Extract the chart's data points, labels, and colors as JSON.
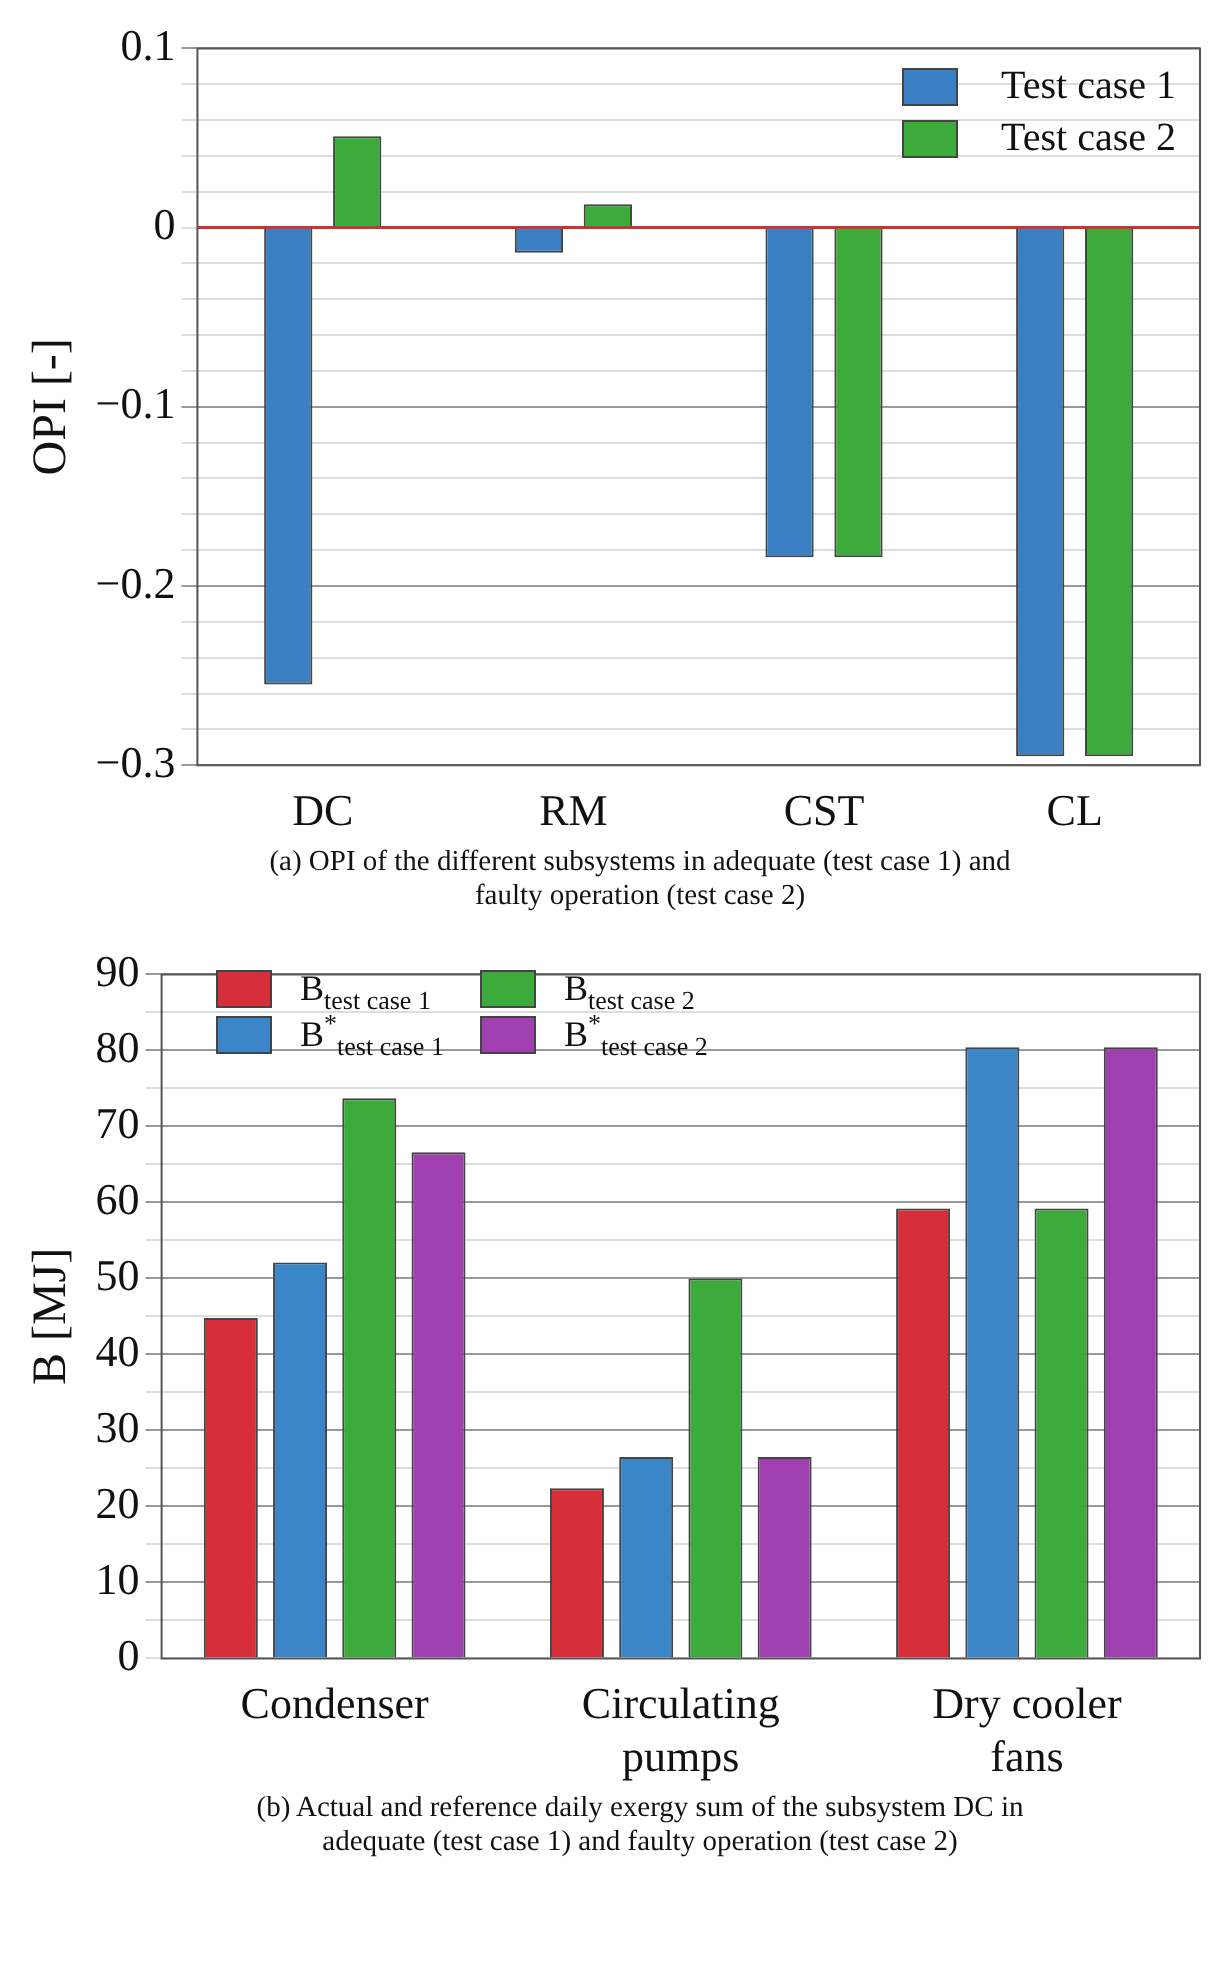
{
  "chart_data": [
    {
      "type": "bar",
      "categories": [
        "DC",
        "RM",
        "CST",
        "CL"
      ],
      "ylabel": "OPI [-]",
      "series": [
        {
          "name": "Test case 1",
          "color": "#3a7fc1",
          "values": [
            -0.255,
            -0.014,
            -0.184,
            -0.295
          ]
        },
        {
          "name": "Test case 2",
          "color": "#3cab3c",
          "values": [
            0.051,
            0.013,
            -0.184,
            -0.295
          ]
        }
      ],
      "ylim": [
        -0.3,
        0.1
      ],
      "yticks": [
        {
          "value": -0.3,
          "label": "−0.3"
        },
        {
          "value": -0.28,
          "label": null
        },
        {
          "value": -0.26,
          "label": null
        },
        {
          "value": -0.24,
          "label": null
        },
        {
          "value": -0.22,
          "label": null
        },
        {
          "value": -0.2,
          "label": "−0.2"
        },
        {
          "value": -0.18,
          "label": null
        },
        {
          "value": -0.16,
          "label": null
        },
        {
          "value": -0.14,
          "label": null
        },
        {
          "value": -0.12,
          "label": null
        },
        {
          "value": -0.1,
          "label": "−0.1"
        },
        {
          "value": -0.08,
          "label": null
        },
        {
          "value": -0.06,
          "label": null
        },
        {
          "value": -0.04,
          "label": null
        },
        {
          "value": -0.02,
          "label": null
        },
        0,
        {
          "value": 0.02,
          "label": null
        },
        {
          "value": 0.04,
          "label": null
        },
        {
          "value": 0.06,
          "label": null
        },
        {
          "value": 0.08,
          "label": null
        },
        0.1
      ],
      "grid": "y",
      "legend": "top right",
      "ref_lines": [
        {
          "axis": "y",
          "value": 0,
          "color": "#d03030"
        }
      ],
      "annotations": [
        "(a) OPI of the different subsystems in adequate (test case 1) and faulty operation (test case 2)"
      ]
    },
    {
      "type": "bar",
      "categories": [
        "Condenser",
        "Circulating pumps",
        "Dry cooler fans"
      ],
      "ylabel": "B [MJ]",
      "series": [
        {
          "name": "B$_{test case 1}$",
          "color": "#d62f3a",
          "values": [
            44.8,
            22.4,
            59.2
          ]
        },
        {
          "name": "B$^{*}$$_{test case 1}$",
          "color": "#3a86c8",
          "values": [
            52.1,
            26.5,
            80.4
          ]
        },
        {
          "name": "B$_{test case 2}$",
          "color": "#3cab3c",
          "values": [
            73.7,
            50.0,
            59.2
          ]
        },
        {
          "name": "B$^{*}$$_{test case 2}$",
          "color": "#a040b0",
          "values": [
            66.6,
            26.5,
            80.4
          ]
        }
      ],
      "ylim": [
        0,
        90
      ],
      "yticks": [
        0,
        {
          "value": 5,
          "label": null
        },
        10,
        {
          "value": 15,
          "label": null
        },
        20,
        {
          "value": 25,
          "label": null
        },
        30,
        {
          "value": 35,
          "label": null
        },
        40,
        {
          "value": 45,
          "label": null
        },
        50,
        {
          "value": 55,
          "label": null
        },
        60,
        {
          "value": 65,
          "label": null
        },
        70,
        {
          "value": 75,
          "label": null
        },
        80,
        {
          "value": 85,
          "label": null
        },
        90
      ],
      "grid": "y",
      "legend": "top left",
      "annotations": [
        "(b) Actual and reference daily exergy sum of the subsystem DC in adequate (test case 1) and faulty operation (test case 2)"
      ]
    }
  ]
}
